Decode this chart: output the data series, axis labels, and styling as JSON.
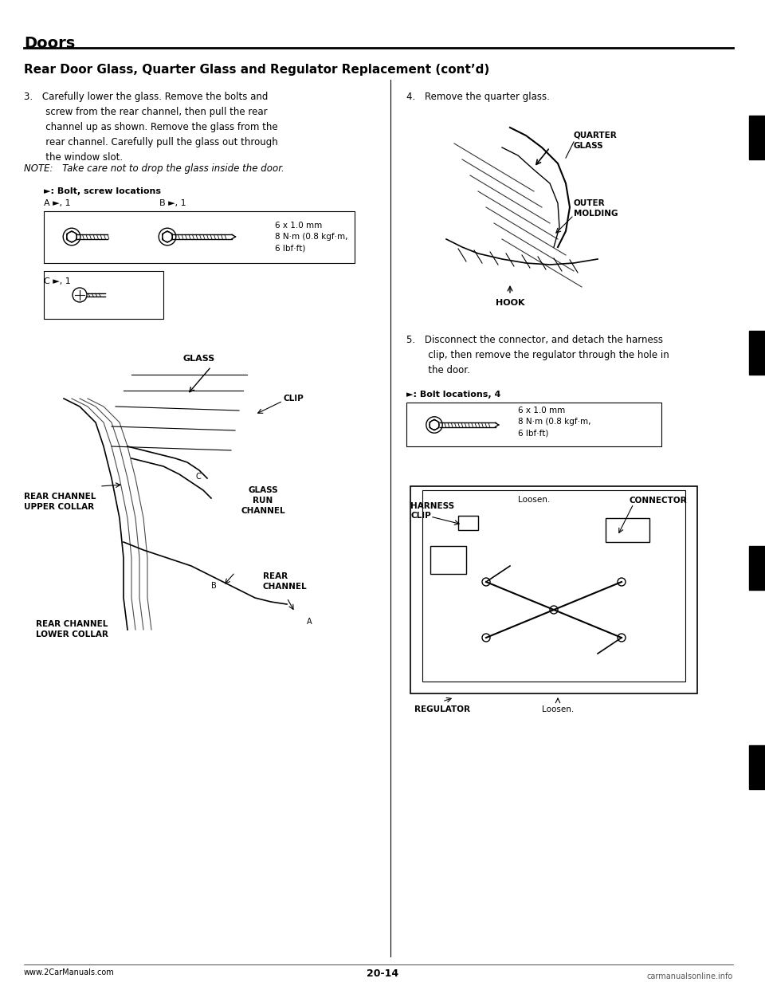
{
  "bg_color": "#ffffff",
  "page_title": "Doors",
  "section_title": "Rear Door Glass, Quarter Glass and Regulator Replacement (cont’d)",
  "step3_header": "3. Carefully lower the glass. Remove the bolts and\n   screw from the rear channel, then pull the rear\n   channel up as shown. Remove the glass from the\n   rear channel. Carefully pull the glass out through\n   the window slot.",
  "step3_note": "NOTE: Take care not to drop the glass inside the door.",
  "bolt_label": "►: Bolt, screw locations",
  "bolt_A": "A ►, 1",
  "bolt_B": "B ►, 1",
  "bolt_C": "C ►, 1",
  "bolt_spec": "6 x 1.0 mm\n8 N·m (0.8 kgf·m,\n6 lbf·ft)",
  "step4_header": "4. Remove the quarter glass.",
  "label_quarter_glass": "QUARTER\nGLASS",
  "label_outer_molding": "OUTER\nMOLDING",
  "label_hook": "HOOK",
  "label_glass": "GLASS",
  "label_clip": "CLIP",
  "label_rear_channel_upper": "REAR CHANNEL\nUPPER COLLAR",
  "label_glass_run_channel": "GLASS\nRUN\nCHANNEL",
  "label_rear_channel": "REAR\nCHANNEL",
  "label_rear_channel_lower": "REAR CHANNEL\nLOWER COLLAR",
  "step5_header": "5. Disconnect the connector, and detach the harness\n   clip, then remove the regulator through the hole in\n   the door.",
  "step5_bolt": "►: Bolt locations, 4",
  "step5_bolt_spec": "6 x 1.0 mm\n8 N·m (0.8 kgf·m,\n6 lbf·ft)",
  "label_harness_clip": "HARNESS\nCLIP",
  "label_connector": "CONNECTOR",
  "label_loosen1": "Loosen.",
  "label_loosen2": "Loosen.",
  "label_regulator": "REGULATOR",
  "footer_left": "www.2CarManuals.com",
  "footer_page": "20-14",
  "footer_right": "carmanualsonline.info"
}
